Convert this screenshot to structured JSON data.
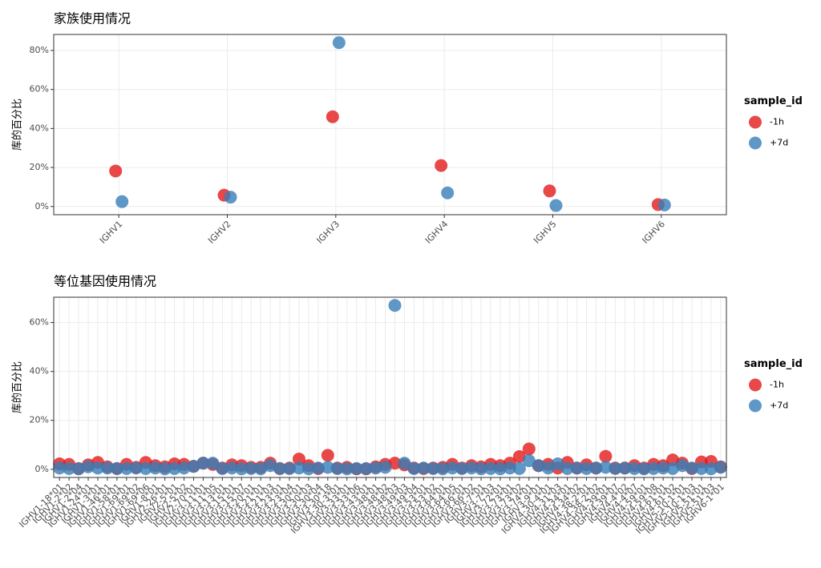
{
  "chart_data": [
    {
      "type": "scatter",
      "title": "家族使用情况",
      "y_label": "库的百分比",
      "legend_title": "sample_id",
      "grid": true,
      "categories": [
        "IGHV1",
        "IGHV2",
        "IGHV3",
        "IGHV4",
        "IGHV5",
        "IGHV6"
      ],
      "series": [
        {
          "name": "-1h",
          "color": "#E41A1C",
          "values": [
            18.2,
            5.8,
            46,
            21,
            8,
            1
          ]
        },
        {
          "name": "+7d",
          "color": "#377EB8",
          "values": [
            2.5,
            4.8,
            84,
            7,
            0.5,
            0.8
          ]
        }
      ],
      "ylim": [
        -4.2,
        88.2
      ],
      "yticks": [
        {
          "value": 0,
          "label": "0%"
        },
        {
          "value": 20,
          "label": "20%"
        },
        {
          "value": 40,
          "label": "40%"
        },
        {
          "value": 60,
          "label": "60%"
        },
        {
          "value": 80,
          "label": "80%"
        }
      ]
    },
    {
      "type": "scatter",
      "title": "等位基因使用情况",
      "y_label": "库的百分比",
      "legend_title": "sample_id",
      "grid": true,
      "categories": [
        "IGHV1-18*01",
        "IGHV1-2*02",
        "IGHV1-2*04",
        "IGHV1-24*01",
        "IGHV1-3*01",
        "IGHV1-46*01",
        "IGHV1-58*01",
        "IGHV1-69*01",
        "IGHV1-69*02",
        "IGHV1-69*06",
        "IGHV1-8*01",
        "IGHV2-26*01",
        "IGHV2-5*01",
        "IGHV2-5*02",
        "IGHV2-70*01",
        "IGHV3-11*01",
        "IGHV3-11*05",
        "IGHV3-13*01",
        "IGHV3-15*01",
        "IGHV3-15*07",
        "IGHV3-20*01",
        "IGHV3-21*01",
        "IGHV3-21*03",
        "IGHV3-23*01",
        "IGHV3-23*04",
        "IGHV3-30*01",
        "IGHV3-30*03",
        "IGHV3-30*04",
        "IGHV3-30*18",
        "IGHV3-30-3*01",
        "IGHV3-33*01",
        "IGHV3-33*06",
        "IGHV3-43*01",
        "IGHV3-48*01",
        "IGHV3-48*02",
        "IGHV3-48*03",
        "IGHV3-49*03",
        "IGHV3-49*04",
        "IGHV3-53*01",
        "IGHV3-53*02",
        "IGHV3-64*01",
        "IGHV3-64*05",
        "IGHV3-66*01",
        "IGHV3-66*02",
        "IGHV3-7*01",
        "IGHV3-7*03",
        "IGHV3-72*01",
        "IGHV3-73*01",
        "IGHV3-73*02",
        "IGHV3-74*01",
        "IGHV3-9*01",
        "IGHV4-30-4*01",
        "IGHV4-31*03",
        "IGHV4-34*01",
        "IGHV4-34*02",
        "IGHV4-38-2*01",
        "IGHV4-38-2*02",
        "IGHV4-39*01",
        "IGHV4-39*07",
        "IGHV4-4*02",
        "IGHV4-4*07",
        "IGHV4-59*01",
        "IGHV4-59*08",
        "IGHV4-61*01",
        "IGHV4-61*02",
        "IGHV5-10-1*01",
        "IGHV5-10-1*03",
        "IGHV5-51*01",
        "IGHV5-51*03",
        "IGHV6-1*01"
      ],
      "series": [
        {
          "name": "-1h",
          "color": "#E41A1C",
          "values": [
            2.2,
            2,
            0.3,
            1.8,
            2.8,
            1,
            0.3,
            2,
            0.8,
            2.8,
            1.5,
            1,
            2.2,
            2,
            1.2,
            2.5,
            2,
            0.5,
            1.8,
            1.5,
            0.8,
            0.8,
            2.5,
            0.3,
            0.5,
            4.2,
            1.5,
            0.3,
            5.7,
            0.5,
            0.8,
            0.2,
            0.2,
            1,
            2,
            2.5,
            1.8,
            0.5,
            0.3,
            0.5,
            0.8,
            2,
            0.5,
            1.5,
            1,
            2,
            1.5,
            2.5,
            5.2,
            8.3,
            1.5,
            2,
            0.5,
            2.8,
            0.5,
            1.8,
            0.5,
            5.3,
            0.5,
            0.5,
            1.5,
            0.5,
            2,
            1.5,
            3.8,
            2.5,
            0.3,
            3,
            3.2,
            1
          ]
        },
        {
          "name": "+7d",
          "color": "#377EB8",
          "values": [
            0.5,
            0.3,
            0.2,
            1,
            0.5,
            0.5,
            0.3,
            0.3,
            0.5,
            0.3,
            0.5,
            0.2,
            0.3,
            0.5,
            1.2,
            2.5,
            2.5,
            0.3,
            0.5,
            0.2,
            0.3,
            0.2,
            1.5,
            0.3,
            0.3,
            0.5,
            0.2,
            0.5,
            0.8,
            0.3,
            0.2,
            0.3,
            0.3,
            0.5,
            0.8,
            67,
            2.5,
            0.3,
            0.5,
            0.3,
            0.2,
            0.5,
            0.3,
            0.5,
            0.2,
            0.3,
            0.2,
            0.5,
            0.3,
            3.5,
            1.5,
            0.5,
            2.2,
            0.3,
            0.5,
            0.3,
            0.5,
            0.8,
            0.3,
            0.5,
            0.3,
            0.2,
            0.3,
            0.5,
            0.3,
            1.5,
            0.5,
            0.3,
            0.2,
            0.8
          ]
        }
      ],
      "ylim": [
        -3.35,
        70.35
      ],
      "yticks": [
        {
          "value": 0,
          "label": "0%"
        },
        {
          "value": 20,
          "label": "20%"
        },
        {
          "value": 40,
          "label": "40%"
        },
        {
          "value": 60,
          "label": "60%"
        }
      ]
    }
  ]
}
